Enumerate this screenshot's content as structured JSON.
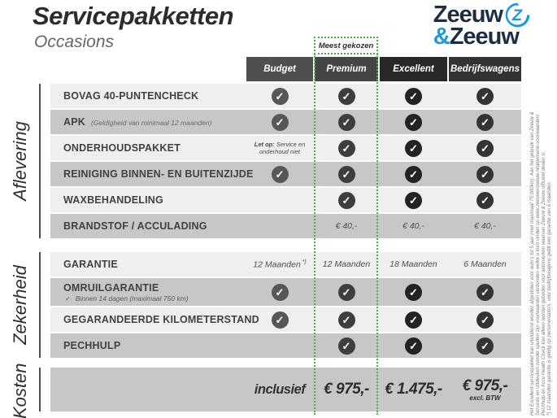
{
  "header": {
    "title": "Servicepakketten",
    "subtitle": "Occasions"
  },
  "logo": {
    "word1": "Zeeuw",
    "amp": "&",
    "word2": "Zeeuw"
  },
  "badge": {
    "label": "Meest gekozen"
  },
  "columns": [
    {
      "label": "Budget",
      "header_color": "#4f4f4f",
      "check_color": "#575757"
    },
    {
      "label": "Premium",
      "header_color": "#454545",
      "check_color": "#3e3e3e",
      "highlighted": true
    },
    {
      "label": "Excellent",
      "header_color": "#282828",
      "check_color": "#232323"
    },
    {
      "label": "Bedrijfswagens",
      "header_color": "#333333",
      "check_color": "#343434"
    }
  ],
  "sections": [
    {
      "label": "Aflevering",
      "rows": [
        {
          "label": "BOVAG 40-PUNTENCHECK",
          "cells": [
            "check",
            "check",
            "check",
            "check"
          ]
        },
        {
          "label": "APK",
          "note": "(Geldigheid van minimaal 12 maanden)",
          "cells": [
            "check",
            "check",
            "check",
            "check"
          ]
        },
        {
          "label": "ONDERHOUDSPAKKET",
          "cells": [
            {
              "note_prefix": "Let op:",
              "note": "Service en onderhoud niet"
            },
            "check",
            "check",
            "check"
          ]
        },
        {
          "label": "REINIGING BINNEN- EN BUITENZIJDE",
          "cells": [
            "check",
            "check",
            "check",
            "check"
          ]
        },
        {
          "label": "WAXBEHANDELING",
          "cells": [
            "",
            "check",
            "check",
            "check"
          ]
        },
        {
          "label": "BRANDSTOF / ACCULADING",
          "cells": [
            "",
            "€ 40,-",
            "€ 40,-",
            "€ 40,-"
          ]
        }
      ]
    },
    {
      "label": "Zekerheid",
      "rows": [
        {
          "label": "GARANTIE",
          "cells": [
            {
              "value": "12 Maanden",
              "sup": "*)"
            },
            "12 Maanden",
            "18 Maanden",
            "6 Maanden"
          ]
        },
        {
          "label": "OMRUILGARANTIE",
          "tall": true,
          "subnote_check": "✓",
          "subnote": "Binnen 14 dagen (maximaal 750 km)",
          "cells": [
            "check",
            "check",
            "check",
            "check"
          ]
        },
        {
          "label": "GEGARANDEERDE KILOMETERSTAND",
          "cells": [
            "check",
            "check",
            "check",
            "check"
          ]
        },
        {
          "label": "PECHHULP",
          "cells": [
            "",
            "check",
            "check",
            "check"
          ]
        }
      ]
    }
  ],
  "totals": {
    "label": "Kosten",
    "cells": [
      {
        "value": "inclusief",
        "style": "word"
      },
      {
        "value": "€ 975,-"
      },
      {
        "value": "€ 1.475,-"
      },
      {
        "value": "€ 975,-",
        "sub": "excl. BTW"
      }
    ]
  },
  "footnotes": [
    "Het Excellent-servicepakket kan uitsluitend worden afgesloten voor auto's tot 5 jaar (met maximaal 75.000km). Aan het gebruik van Zeeuw &",
    "Services en Uitdeuken zonder spuiten zijn voorwaarden verbonden welke u kunt vinden op www.zeeuwenzeeuw.nl/algemene-voorwaarden/",
    "Pechhulp en Accu Health Check kan alleen worden geboden voor automerken waarvan Zeeuw & Zeeuw officieel dealer is.",
    "*) 12 maanden garantie is geldig op personenauto's, voor bedrijfswagens geldt een garantie van 6 maanden."
  ],
  "colors": {
    "accent_green": "#44b449",
    "brand_navy": "#1d2d44",
    "brand_blue": "#1f98d5"
  }
}
